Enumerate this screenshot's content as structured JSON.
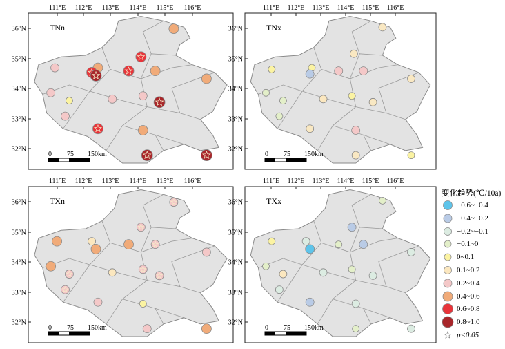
{
  "panels": [
    {
      "id": "TNn",
      "label": "TNn"
    },
    {
      "id": "TNx",
      "label": "TNx"
    },
    {
      "id": "TXn",
      "label": "TXn"
    },
    {
      "id": "TXx",
      "label": "TXx"
    }
  ],
  "axes": {
    "lon_ticks": [
      "111°E",
      "112°E",
      "113°E",
      "114°E",
      "115°E",
      "116°E"
    ],
    "lat_ticks": [
      "36°N",
      "35°N",
      "34°N",
      "33°N",
      "32°N"
    ]
  },
  "scale_bar": {
    "labels": [
      "0",
      "75",
      "150km"
    ]
  },
  "legend": {
    "title": "变化趋势(℃/10a)",
    "classes": [
      {
        "label": "−0.6~−0.4",
        "color": "#5ec4ea",
        "r": 6.5
      },
      {
        "label": "−0.4~−0.2",
        "color": "#b9cbe6",
        "r": 6
      },
      {
        "label": "−0.2~−0.1",
        "color": "#dcece2",
        "r": 5.5
      },
      {
        "label": "−0.1~0",
        "color": "#e3efc9",
        "r": 5
      },
      {
        "label": "0~0.1",
        "color": "#fbf3a2",
        "r": 5
      },
      {
        "label": "0.1~0.2",
        "color": "#fbe7bf",
        "r": 5.5
      },
      {
        "label": "0.2~0.4",
        "color": "#f4c8c8",
        "r": 6
      },
      {
        "label": "0.4~0.6",
        "color": "#f1ab79",
        "r": 7
      },
      {
        "label": "0.6~0.8",
        "color": "#e8343a",
        "r": 7.5
      },
      {
        "label": "0.8~1.0",
        "color": "#a8262a",
        "r": 8
      }
    ],
    "significance": {
      "label": "p<0.05",
      "symbol": "star"
    }
  }
}
